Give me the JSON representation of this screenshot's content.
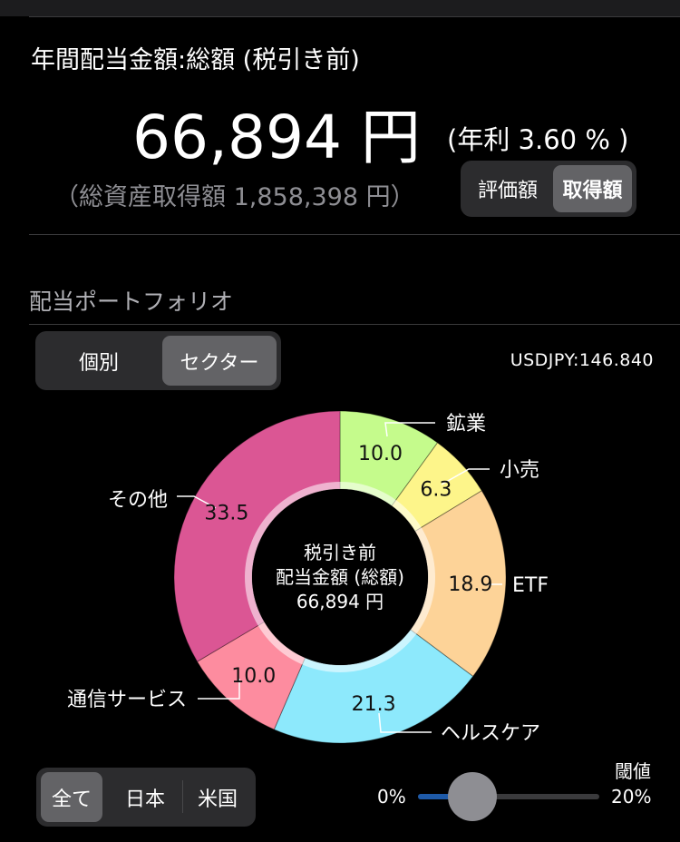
{
  "header": {
    "title": "年間配当金額:総額 (税引き前)",
    "amount": "66,894 円",
    "yield": "(年利 3.60 % )",
    "cost": "（総資産取得額 1,858,398 円）",
    "basis_toggle": {
      "options": [
        "評価額",
        "取得額"
      ],
      "selected": "取得額"
    }
  },
  "portfolio": {
    "section_title": "配当ポートフォリオ",
    "view_toggle": {
      "options": [
        "個別",
        "セクター"
      ],
      "selected": "セクター"
    },
    "fx_rate": "USDJPY:146.840",
    "center": {
      "line1": "税引き前",
      "line2": "配当金額 (総額)",
      "line3": "66,894 円"
    }
  },
  "chart_data": {
    "type": "pie",
    "slices": [
      {
        "name": "鉱業",
        "value": 10.0,
        "label": "10.0",
        "color": "#c5fb8c"
      },
      {
        "name": "小売",
        "value": 6.3,
        "label": "6.3",
        "color": "#fdf58a"
      },
      {
        "name": "ETF",
        "value": 18.9,
        "label": "18.9",
        "color": "#fdd398"
      },
      {
        "name": "ヘルスケア",
        "value": 21.3,
        "label": "21.3",
        "color": "#8de9fc"
      },
      {
        "name": "通信サービス",
        "value": 10.0,
        "label": "10.0",
        "color": "#fd8c9f"
      },
      {
        "name": "その他",
        "value": 33.5,
        "label": "33.5",
        "color": "#db5694"
      }
    ]
  },
  "filters": {
    "region_toggle": {
      "options": [
        "全て",
        "日本",
        "米国"
      ],
      "selected": "全て"
    },
    "threshold": {
      "title": "閾値",
      "min_label": "0%",
      "max_label": "20%",
      "value_fraction": 0.3
    }
  }
}
